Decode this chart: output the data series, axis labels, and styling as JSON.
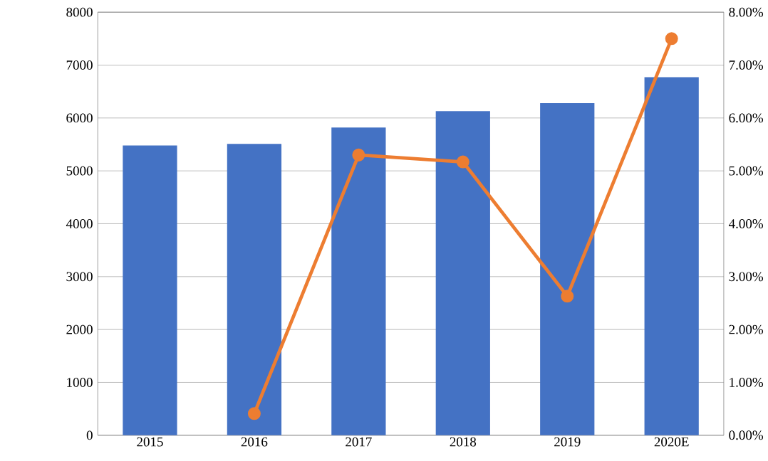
{
  "chart_data": {
    "type": "bar",
    "categories": [
      "2015",
      "2016",
      "2017",
      "2018",
      "2019",
      "2020E"
    ],
    "series": [
      {
        "color": "#4472c4",
        "values": [
          5480,
          5510,
          5820,
          6130,
          6280,
          6770
        ]
      },
      {
        "type": "line",
        "axis": "y2",
        "color": "#ed7d31",
        "values": [
          null,
          0.41,
          5.3,
          5.17,
          2.63,
          7.5
        ]
      }
    ],
    "ylim": [
      0,
      8000
    ],
    "yticks": [
      0,
      1000,
      2000,
      3000,
      4000,
      5000,
      6000,
      7000,
      8000
    ],
    "y2lim": [
      0,
      8
    ],
    "y2ticks": [
      {
        "value": 0,
        "label": "0.00%"
      },
      {
        "value": 1,
        "label": "1.00%"
      },
      {
        "value": 2,
        "label": "2.00%"
      },
      {
        "value": 3,
        "label": "3.00%"
      },
      {
        "value": 4,
        "label": "4.00%"
      },
      {
        "value": 5,
        "label": "5.00%"
      },
      {
        "value": 6,
        "label": "6.00%"
      },
      {
        "value": 7,
        "label": "7.00%"
      },
      {
        "value": 8,
        "label": "8.00%"
      }
    ],
    "grid": "y",
    "marker": "circle"
  }
}
